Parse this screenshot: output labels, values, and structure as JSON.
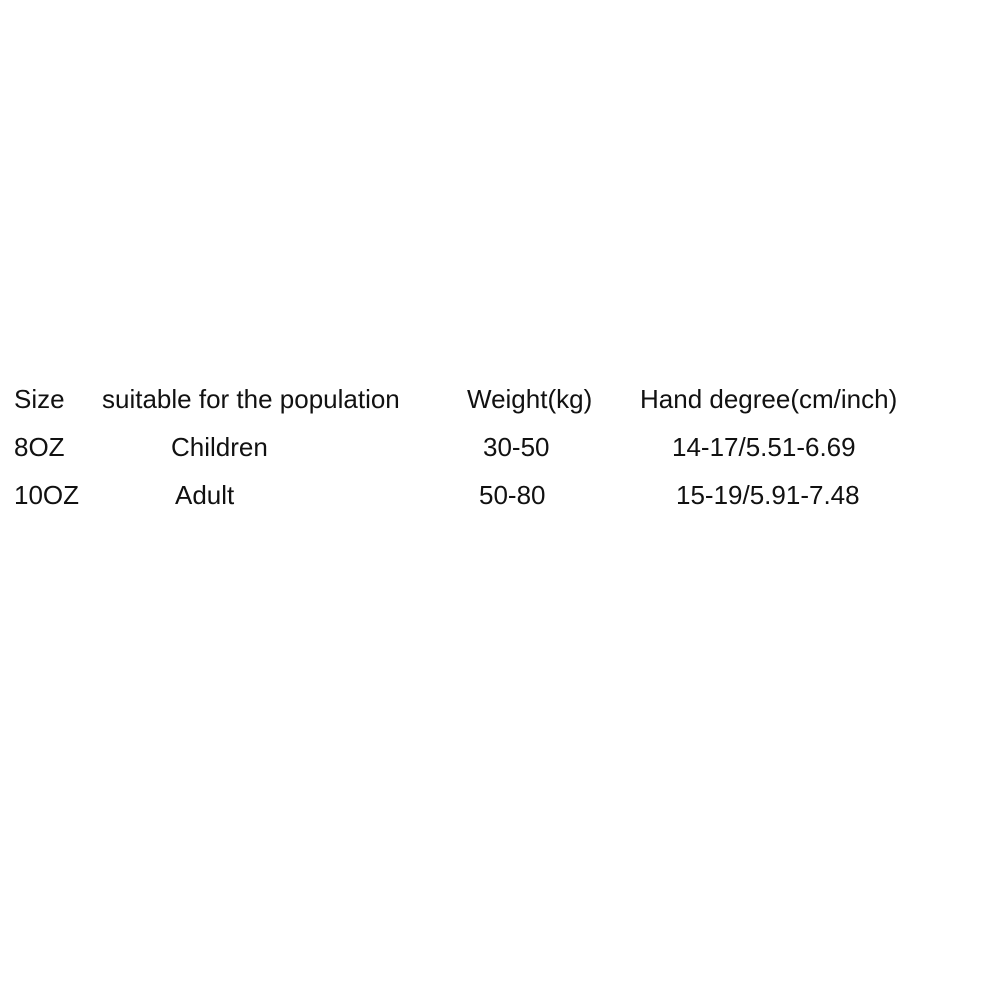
{
  "table": {
    "headers": [
      "Size",
      "suitable for the population",
      "Weight(kg)",
      "Hand degree(cm/inch)"
    ],
    "rows": [
      [
        "8OZ",
        "Children",
        "30-50",
        "14-17/5.51-6.69"
      ],
      [
        "10OZ",
        "Adult",
        "50-80",
        "15-19/5.91-7.48"
      ]
    ]
  }
}
